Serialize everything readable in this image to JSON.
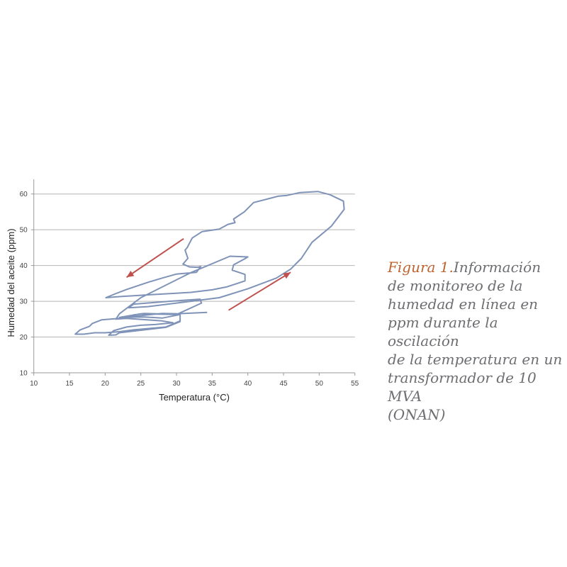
{
  "chart_data": {
    "type": "line",
    "xlabel": "Temperatura (°C)",
    "ylabel": "Humedad del aceite (ppm)",
    "xlim": [
      10,
      55
    ],
    "ylim": [
      10,
      60
    ],
    "xticks": [
      10,
      15,
      20,
      25,
      30,
      35,
      40,
      45,
      50,
      55
    ],
    "yticks": [
      10,
      20,
      30,
      40,
      50,
      60
    ],
    "grid": "horizontal",
    "line_color": "#7f93b8",
    "arrow_color": "#c0504d",
    "series": [
      {
        "x": [
          34.3,
          29,
          25.5,
          24,
          22,
          19.5,
          18.2,
          17.8,
          16.5,
          15.8,
          17,
          18.5,
          20,
          22,
          24,
          28.5,
          30.5,
          30.5,
          28,
          25.5,
          22,
          25,
          30,
          33.5,
          33.3,
          29,
          24,
          23.3,
          26,
          32,
          36,
          40,
          44,
          46,
          47.5,
          49,
          51.7,
          53.5,
          53.4,
          51.5,
          49.8,
          47.3,
          45.5,
          44.3,
          40.8,
          39.5,
          38,
          38.2,
          37.2,
          36,
          33.6,
          32.2,
          31.5,
          31.2,
          31.6,
          30.9,
          31.8,
          33,
          33.4,
          32.8,
          30,
          28,
          26,
          23,
          21.3,
          20.1,
          22,
          26,
          32,
          35,
          37,
          39.6,
          39.6,
          37.8,
          38,
          39.5,
          40,
          37.5,
          32,
          25,
          22,
          21.5,
          23,
          28,
          29.5,
          27,
          25,
          23,
          21.2,
          20.5,
          21.5,
          22,
          28.5,
          30.5,
          30.5,
          28,
          22.5
        ],
        "y": [
          26.9,
          26.4,
          26.6,
          26.2,
          25.2,
          24.8,
          23.8,
          23,
          22,
          20.8,
          20.8,
          21.2,
          21.2,
          21.5,
          22,
          22.8,
          24.5,
          26.3,
          25.3,
          25.6,
          25.5,
          26.5,
          26.3,
          29.5,
          30.6,
          30,
          29.2,
          28.2,
          28.5,
          30,
          31,
          33.5,
          36.5,
          39,
          42,
          46.5,
          51,
          55.7,
          58,
          59.8,
          60.7,
          60.4,
          59.6,
          59.4,
          57.6,
          55,
          53,
          52,
          51.5,
          50.2,
          49.5,
          47.7,
          45,
          44.3,
          42,
          40.4,
          39.6,
          39.5,
          39.7,
          38.1,
          37.6,
          36.5,
          35.3,
          33.3,
          32,
          31,
          31.3,
          31.8,
          32.5,
          33.2,
          34,
          35.7,
          37.5,
          38.7,
          40.2,
          41.8,
          42.4,
          42.6,
          38,
          31,
          26.5,
          25,
          25.2,
          24.5,
          24,
          23.5,
          23.3,
          22.8,
          21.8,
          20.5,
          20.6,
          21.2,
          22.7,
          24.3,
          26.5,
          26.6,
          25.5
        ]
      }
    ],
    "annotations": [
      {
        "type": "arrow",
        "from": [
          31,
          47.5
        ],
        "to": [
          23,
          36.7
        ]
      },
      {
        "type": "arrow",
        "from": [
          37.3,
          27.5
        ],
        "to": [
          46,
          38.1
        ]
      }
    ]
  },
  "caption": {
    "label": "Figura 1.",
    "lines": [
      "Información",
      "de monitoreo de la",
      "humedad en línea en",
      "ppm durante la oscilación",
      "de la temperatura en un",
      "transformador de 10 MVA",
      "(ONAN)"
    ]
  }
}
